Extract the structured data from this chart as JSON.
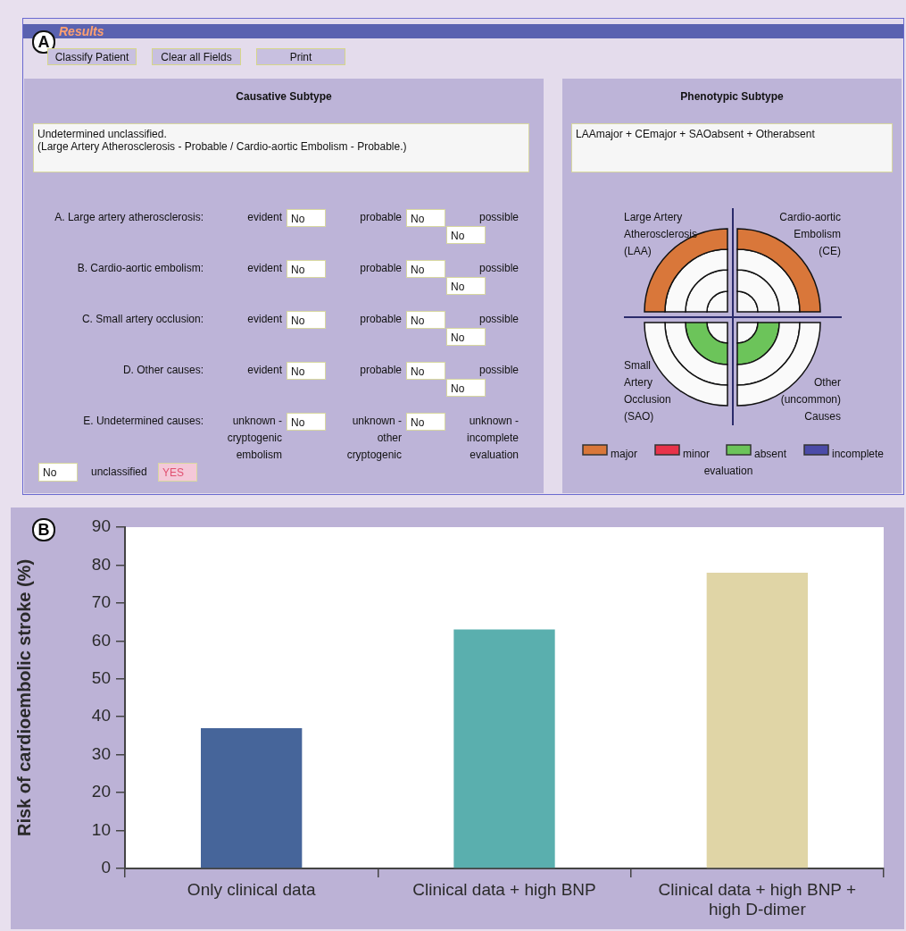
{
  "chart_data": [
    {
      "type": "other",
      "title": "Results",
      "annotations": [
        "A",
        "Classify Patient",
        "Clear all Fields",
        "Print",
        "Causative Subtype",
        "Undetermined unclassified.",
        "(Large Artery Atherosclerosis - Probable / Cardio-aortic Embolism - Probable.)",
        "Phenotypic Subtype",
        "LAAmajor + CEmajor + SAOabsent + Otherabsent",
        "A. Large artery atherosclerosis:",
        "evident",
        "No",
        "probable",
        "No",
        "possible",
        "No",
        "B. Cardio-aortic embolism:",
        "evident",
        "No",
        "probable",
        "No",
        "possible",
        "No",
        "C. Small artery occlusion:",
        "evident",
        "No",
        "probable",
        "No",
        "possible",
        "No",
        "D. Other causes:",
        "evident",
        "No",
        "probable",
        "No",
        "possible",
        "No",
        "E. Undetermined causes:",
        "unknown -\ncryptogenic\nembolism",
        "No",
        "unknown -\nother\ncryptogenic",
        "No",
        "unknown -\nincomplete\nevaluation",
        "No",
        "unclassified",
        "YES",
        "Large Artery\nAtherosclerosis\n(LAA)",
        "Cardio-aortic\nEmbolism\n(CE)",
        "Small\nArtery\nOcclusion\n(SAO)",
        "Other\n(uncommon)\nCauses",
        "major",
        "minor",
        "absent",
        "incomplete",
        "evaluation"
      ]
    },
    {
      "type": "bar",
      "ylabel": "Risk of cardioembolic stroke (%)",
      "categories": [
        "Only clinical data",
        "Clinical data + high BNP",
        "Clinical data + high BNP + high D-dimer"
      ],
      "values": [
        37,
        63,
        78
      ],
      "colors": [
        "#46659a",
        "#5aafae",
        "#e0d5a6"
      ],
      "ylim": [
        0,
        90
      ],
      "yticks": [
        0,
        10,
        20,
        30,
        40,
        50,
        60,
        70,
        80,
        90
      ],
      "annotations": [
        "B"
      ]
    }
  ]
}
